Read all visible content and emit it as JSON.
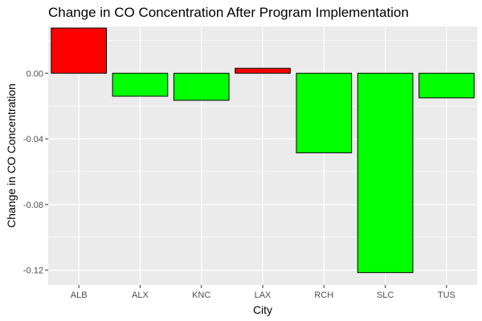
{
  "chart_data": {
    "type": "bar",
    "title": "Change in CO Concentration After Program Implementation",
    "xlabel": "City",
    "ylabel": "Change in CO Concentration",
    "categories": [
      "ALB",
      "ALX",
      "KNC",
      "LAX",
      "RCH",
      "SLC",
      "TUS"
    ],
    "values": [
      0.0275,
      -0.014,
      -0.0165,
      0.003,
      -0.0485,
      -0.1215,
      -0.015
    ],
    "ylim": [
      -0.129,
      0.0285
    ],
    "yticks": [
      0.0,
      -0.04,
      -0.08,
      -0.12
    ],
    "ytick_labels": [
      "0.00",
      "-0.04",
      "-0.08",
      "-0.12"
    ],
    "grid": true,
    "legend": "none",
    "colors": {
      "increase": "#ff0000",
      "decrease": "#00ff00",
      "bar_outline": "#000000",
      "panel_background": "#ebebeb",
      "grid_major": "#ffffff"
    }
  }
}
